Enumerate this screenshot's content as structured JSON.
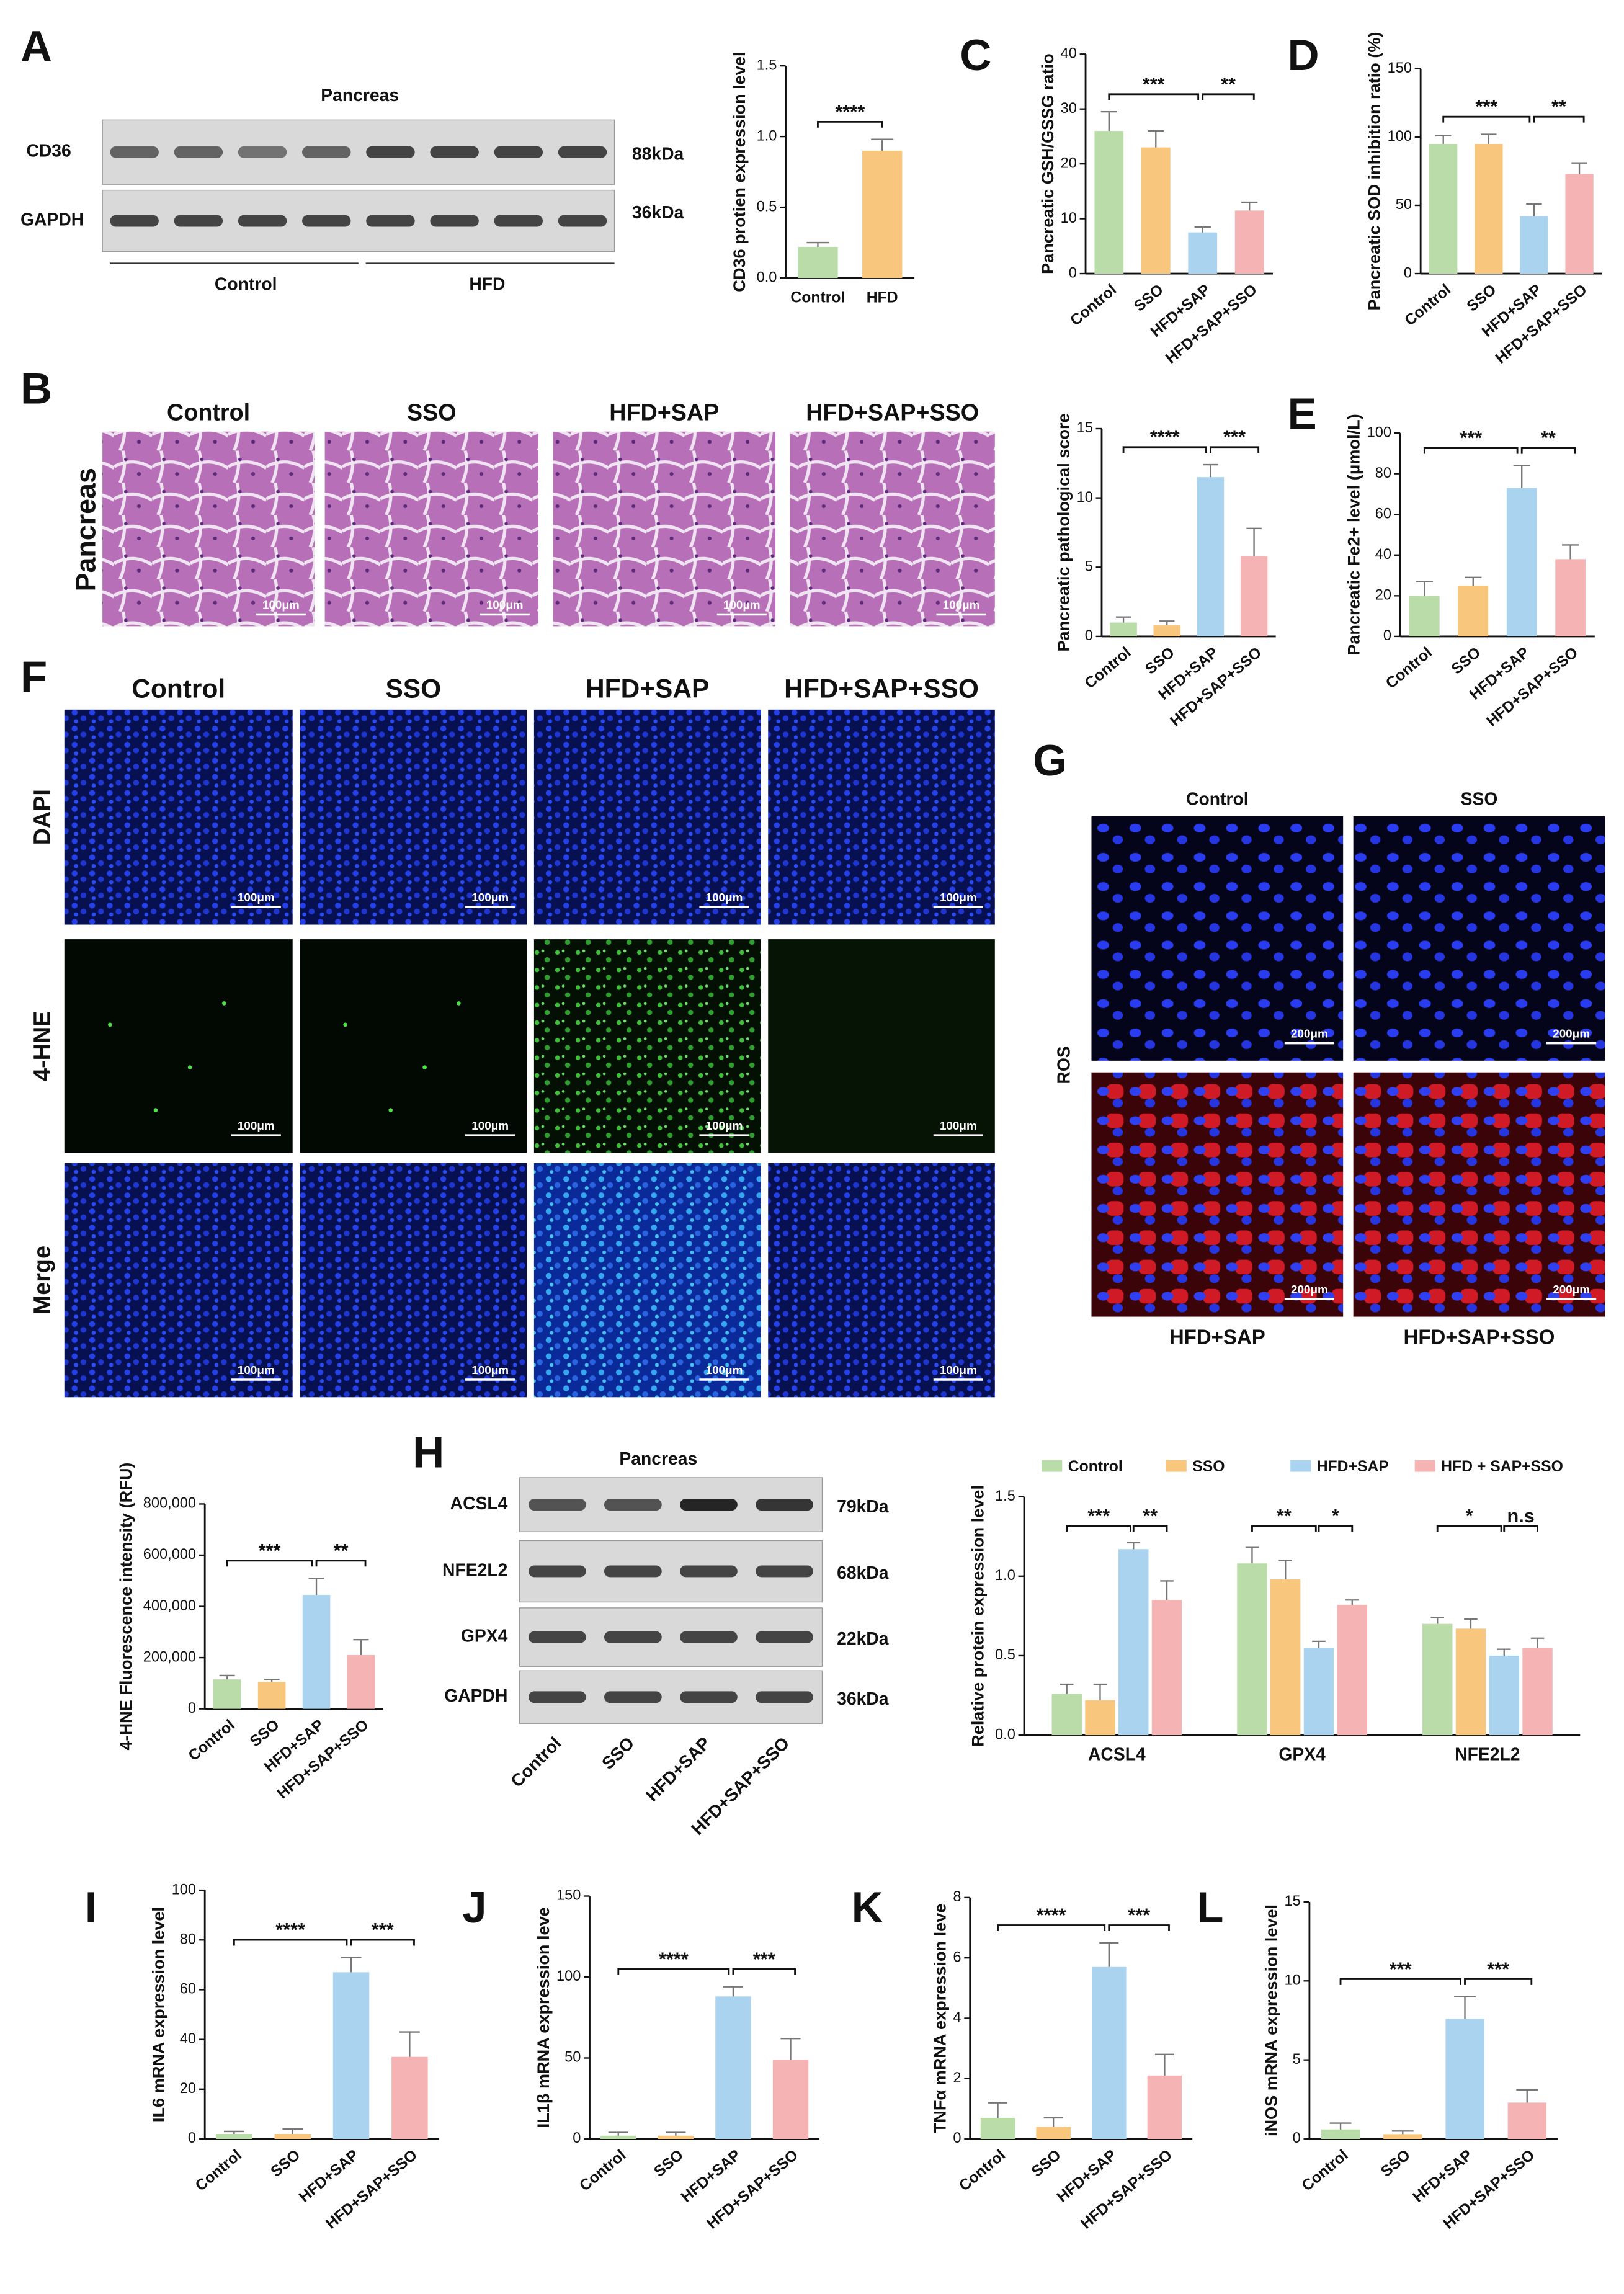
{
  "figure": {
    "panel_labels": [
      "A",
      "B",
      "C",
      "D",
      "E",
      "F",
      "G",
      "H",
      "I",
      "J",
      "K",
      "L"
    ],
    "blot_A": {
      "title": "Pancreas",
      "rows": [
        "CD36",
        "GAPDH"
      ],
      "sizes": [
        "88kDa",
        "36kDa"
      ],
      "groups": [
        "Control",
        "HFD"
      ]
    },
    "histology_B": {
      "side_label": "Pancreas",
      "columns": [
        "Control",
        "SSO",
        "HFD+SAP",
        "HFD+SAP+SSO"
      ],
      "scale_bar": "100μm"
    },
    "fluorescence_F": {
      "columns": [
        "Control",
        "SSO",
        "HFD+SAP",
        "HFD+SAP+SSO"
      ],
      "rows": [
        "DAPI",
        "4-HNE",
        "Merge"
      ],
      "scale_bar": "100μm"
    },
    "ros_G": {
      "top": [
        "Control",
        "SSO"
      ],
      "bottom": [
        "HFD+SAP",
        "HFD+SAP+SSO"
      ],
      "row_label": "ROS",
      "scale_bar": "200μm"
    },
    "blot_H": {
      "title": "Pancreas",
      "rows": [
        "ACSL4",
        "NFE2L2",
        "GPX4",
        "GAPDH"
      ],
      "sizes": [
        "79kDa",
        "68kDa",
        "22kDa",
        "36kDa"
      ],
      "lanes": [
        "Control",
        "SSO",
        "HFD+SAP",
        "HFD+SAP+SSO"
      ]
    }
  },
  "chart_data": [
    {
      "type": "bar",
      "y_label": "CD36 protien expression level",
      "categories": [
        "Control",
        "HFD"
      ],
      "values": [
        0.22,
        0.9
      ],
      "errors": [
        0.03,
        0.08
      ],
      "colors": [
        "#b9dca9",
        "#f8c77d"
      ],
      "ylim": [
        0,
        1.5
      ],
      "yticks": [
        {
          "value": 0,
          "label": "0.0"
        },
        0.5,
        {
          "value": 1,
          "label": "1.0"
        },
        1.5
      ],
      "comparisons": [
        {
          "groups": [
            0,
            1
          ],
          "label": "****"
        }
      ]
    },
    {
      "type": "bar",
      "y_label": "Pancreatic GSH/GSSG ratio",
      "categories": [
        "Control",
        "SSO",
        "HFD+SAP",
        "HFD+SAP+SSO"
      ],
      "values": [
        26,
        23,
        7.5,
        11.5
      ],
      "errors": [
        3.5,
        3,
        1,
        1.5
      ],
      "colors": [
        "#b9dca9",
        "#f8c77d",
        "#a9d3ef",
        "#f6b3b3"
      ],
      "ylim": [
        0,
        40
      ],
      "yticks": [
        0,
        10,
        20,
        30,
        40
      ],
      "comparisons": [
        {
          "groups": [
            0,
            2
          ],
          "label": "***"
        },
        {
          "groups": [
            2,
            3
          ],
          "label": "**"
        }
      ]
    },
    {
      "type": "bar",
      "y_label": "Pancreatic SOD inhibition ratio (%)",
      "categories": [
        "Control",
        "SSO",
        "HFD+SAP",
        "HFD+SAP+SSO"
      ],
      "values": [
        95,
        95,
        42,
        73
      ],
      "errors": [
        6,
        7,
        9,
        8
      ],
      "colors": [
        "#b9dca9",
        "#f8c77d",
        "#a9d3ef",
        "#f6b3b3"
      ],
      "ylim": [
        0,
        150
      ],
      "yticks": [
        0,
        50,
        100,
        150
      ],
      "comparisons": [
        {
          "groups": [
            0,
            2
          ],
          "label": "***"
        },
        {
          "groups": [
            2,
            3
          ],
          "label": "**"
        }
      ]
    },
    {
      "type": "bar",
      "y_label": "Pancreatic pathological score",
      "categories": [
        "Control",
        "SSO",
        "HFD+SAP",
        "HFD+SAP+SSO"
      ],
      "values": [
        1,
        0.8,
        11.5,
        5.8
      ],
      "errors": [
        0.4,
        0.3,
        0.9,
        2
      ],
      "colors": [
        "#b9dca9",
        "#f8c77d",
        "#a9d3ef",
        "#f6b3b3"
      ],
      "ylim": [
        0,
        15
      ],
      "yticks": [
        0,
        5,
        10,
        15
      ],
      "comparisons": [
        {
          "groups": [
            0,
            2
          ],
          "label": "****"
        },
        {
          "groups": [
            2,
            3
          ],
          "label": "***"
        }
      ]
    },
    {
      "type": "bar",
      "y_label": "Pancreatic Fe2+ level (μmol/L)",
      "categories": [
        "Control",
        "SSO",
        "HFD+SAP",
        "HFD+SAP+SSO"
      ],
      "values": [
        20,
        25,
        73,
        38
      ],
      "errors": [
        7,
        4,
        11,
        7
      ],
      "colors": [
        "#b9dca9",
        "#f8c77d",
        "#a9d3ef",
        "#f6b3b3"
      ],
      "ylim": [
        0,
        100
      ],
      "yticks": [
        0,
        20,
        40,
        60,
        80,
        100
      ],
      "comparisons": [
        {
          "groups": [
            0,
            2
          ],
          "label": "***"
        },
        {
          "groups": [
            2,
            3
          ],
          "label": "**"
        }
      ]
    },
    {
      "type": "bar",
      "y_label": "4-HNE Fluorescence intensity (RFU)",
      "categories": [
        "Control",
        "SSO",
        "HFD+SAP",
        "HFD+SAP+SSO"
      ],
      "values": [
        115000,
        105000,
        445000,
        210000
      ],
      "errors": [
        15000,
        10000,
        65000,
        60000
      ],
      "colors": [
        "#b9dca9",
        "#f8c77d",
        "#a9d3ef",
        "#f6b3b3"
      ],
      "ylim": [
        0,
        800000
      ],
      "yticks": [
        0,
        {
          "value": 200000,
          "label": "200,000"
        },
        {
          "value": 400000,
          "label": "400,000"
        },
        {
          "value": 600000,
          "label": "600,000"
        },
        {
          "value": 800000,
          "label": "800,000"
        }
      ],
      "comparisons": [
        {
          "groups": [
            0,
            2
          ],
          "label": "***"
        },
        {
          "groups": [
            2,
            3
          ],
          "label": "**"
        }
      ]
    },
    {
      "type": "grouped_bar",
      "y_label": "Relative protein expression level",
      "categories": [
        "ACSL4",
        "GPX4",
        "NFE2L2"
      ],
      "series": [
        {
          "name": "Control",
          "color": "#b9dca9",
          "values": [
            0.26,
            1.08,
            0.7
          ],
          "errors": [
            0.06,
            0.1,
            0.04
          ]
        },
        {
          "name": "SSO",
          "color": "#f8c77d",
          "values": [
            0.22,
            0.98,
            0.67
          ],
          "errors": [
            0.1,
            0.12,
            0.06
          ]
        },
        {
          "name": "HFD+SAP",
          "color": "#a9d3ef",
          "values": [
            1.17,
            0.55,
            0.5
          ],
          "errors": [
            0.04,
            0.04,
            0.04
          ]
        },
        {
          "name": "HFD + SAP+SSO",
          "color": "#f6b3b3",
          "values": [
            0.85,
            0.82,
            0.55
          ],
          "errors": [
            0.12,
            0.03,
            0.06
          ]
        }
      ],
      "ylim": [
        0,
        1.5
      ],
      "yticks": [
        {
          "value": 0,
          "label": "0.0"
        },
        0.5,
        {
          "value": 1,
          "label": "1.0"
        },
        1.5
      ],
      "comparisons": [
        {
          "category": 0,
          "groups": [
            0,
            2
          ],
          "label": "***"
        },
        {
          "category": 0,
          "groups": [
            2,
            3
          ],
          "label": "**"
        },
        {
          "category": 1,
          "groups": [
            0,
            2
          ],
          "label": "**"
        },
        {
          "category": 1,
          "groups": [
            2,
            3
          ],
          "label": "*"
        },
        {
          "category": 2,
          "groups": [
            0,
            2
          ],
          "label": "*"
        },
        {
          "category": 2,
          "groups": [
            2,
            3
          ],
          "label": "n.s"
        }
      ]
    },
    {
      "type": "bar",
      "y_label": "IL6 mRNA expression level",
      "categories": [
        "Control",
        "SSO",
        "HFD+SAP",
        "HFD+SAP+SSO"
      ],
      "values": [
        2,
        2,
        67,
        33
      ],
      "errors": [
        1,
        2,
        6,
        10
      ],
      "colors": [
        "#b9dca9",
        "#f8c77d",
        "#a9d3ef",
        "#f6b3b3"
      ],
      "ylim": [
        0,
        100
      ],
      "yticks": [
        0,
        20,
        40,
        60,
        80,
        100
      ],
      "comparisons": [
        {
          "groups": [
            0,
            2
          ],
          "label": "****"
        },
        {
          "groups": [
            2,
            3
          ],
          "label": "***"
        }
      ]
    },
    {
      "type": "bar",
      "y_label": "IL1β mRNA expression leve",
      "categories": [
        "Control",
        "SSO",
        "HFD+SAP",
        "HFD+SAP+SSO"
      ],
      "values": [
        2,
        2,
        88,
        49
      ],
      "errors": [
        2,
        2,
        6,
        13
      ],
      "colors": [
        "#b9dca9",
        "#f8c77d",
        "#a9d3ef",
        "#f6b3b3"
      ],
      "ylim": [
        0,
        150
      ],
      "yticks": [
        0,
        50,
        100,
        150
      ],
      "comparisons": [
        {
          "groups": [
            0,
            2
          ],
          "label": "****"
        },
        {
          "groups": [
            2,
            3
          ],
          "label": "***"
        }
      ]
    },
    {
      "type": "bar",
      "y_label": "TNFα mRNA expression leve",
      "categories": [
        "Control",
        "SSO",
        "HFD+SAP",
        "HFD+SAP+SSO"
      ],
      "values": [
        0.7,
        0.4,
        5.7,
        2.1
      ],
      "errors": [
        0.5,
        0.3,
        0.8,
        0.7
      ],
      "colors": [
        "#b9dca9",
        "#f8c77d",
        "#a9d3ef",
        "#f6b3b3"
      ],
      "ylim": [
        0,
        8
      ],
      "yticks": [
        0,
        2,
        4,
        6,
        8
      ],
      "comparisons": [
        {
          "groups": [
            0,
            2
          ],
          "label": "****"
        },
        {
          "groups": [
            2,
            3
          ],
          "label": "***"
        }
      ]
    },
    {
      "type": "bar",
      "y_label": "iNOS mRNA expression level",
      "categories": [
        "Control",
        "SSO",
        "HFD+SAP",
        "HFD+SAP+SSO"
      ],
      "values": [
        0.6,
        0.3,
        7.6,
        2.3
      ],
      "errors": [
        0.4,
        0.2,
        1.4,
        0.8
      ],
      "colors": [
        "#b9dca9",
        "#f8c77d",
        "#a9d3ef",
        "#f6b3b3"
      ],
      "ylim": [
        0,
        15
      ],
      "yticks": [
        0,
        5,
        10,
        15
      ],
      "comparisons": [
        {
          "groups": [
            0,
            2
          ],
          "label": "***"
        },
        {
          "groups": [
            2,
            3
          ],
          "label": "***"
        }
      ]
    }
  ]
}
